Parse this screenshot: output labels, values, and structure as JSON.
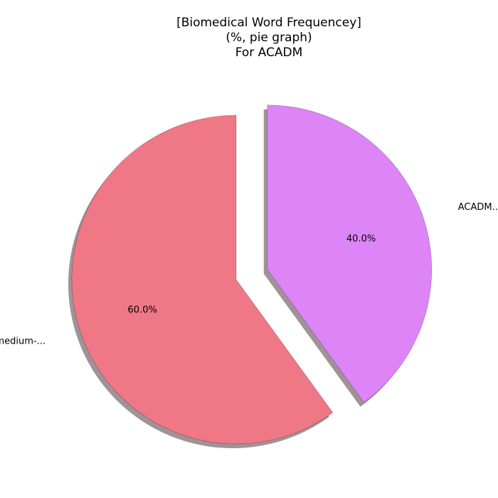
{
  "chart_data": {
    "type": "pie",
    "title_lines": [
      "[Biomedical Word Frequencey]",
      "(%, pie graph)",
      "For ACADM"
    ],
    "slices": [
      {
        "label": "ACADM...",
        "value": 40.0,
        "pct_label": "40.0%",
        "color": "#dd84f7",
        "exploded": true
      },
      {
        "label": "medium-...",
        "value": 60.0,
        "pct_label": "60.0%",
        "color": "#f07886",
        "exploded": false
      }
    ],
    "start_angle_deg": 90,
    "direction": "clockwise",
    "shadow": true
  }
}
